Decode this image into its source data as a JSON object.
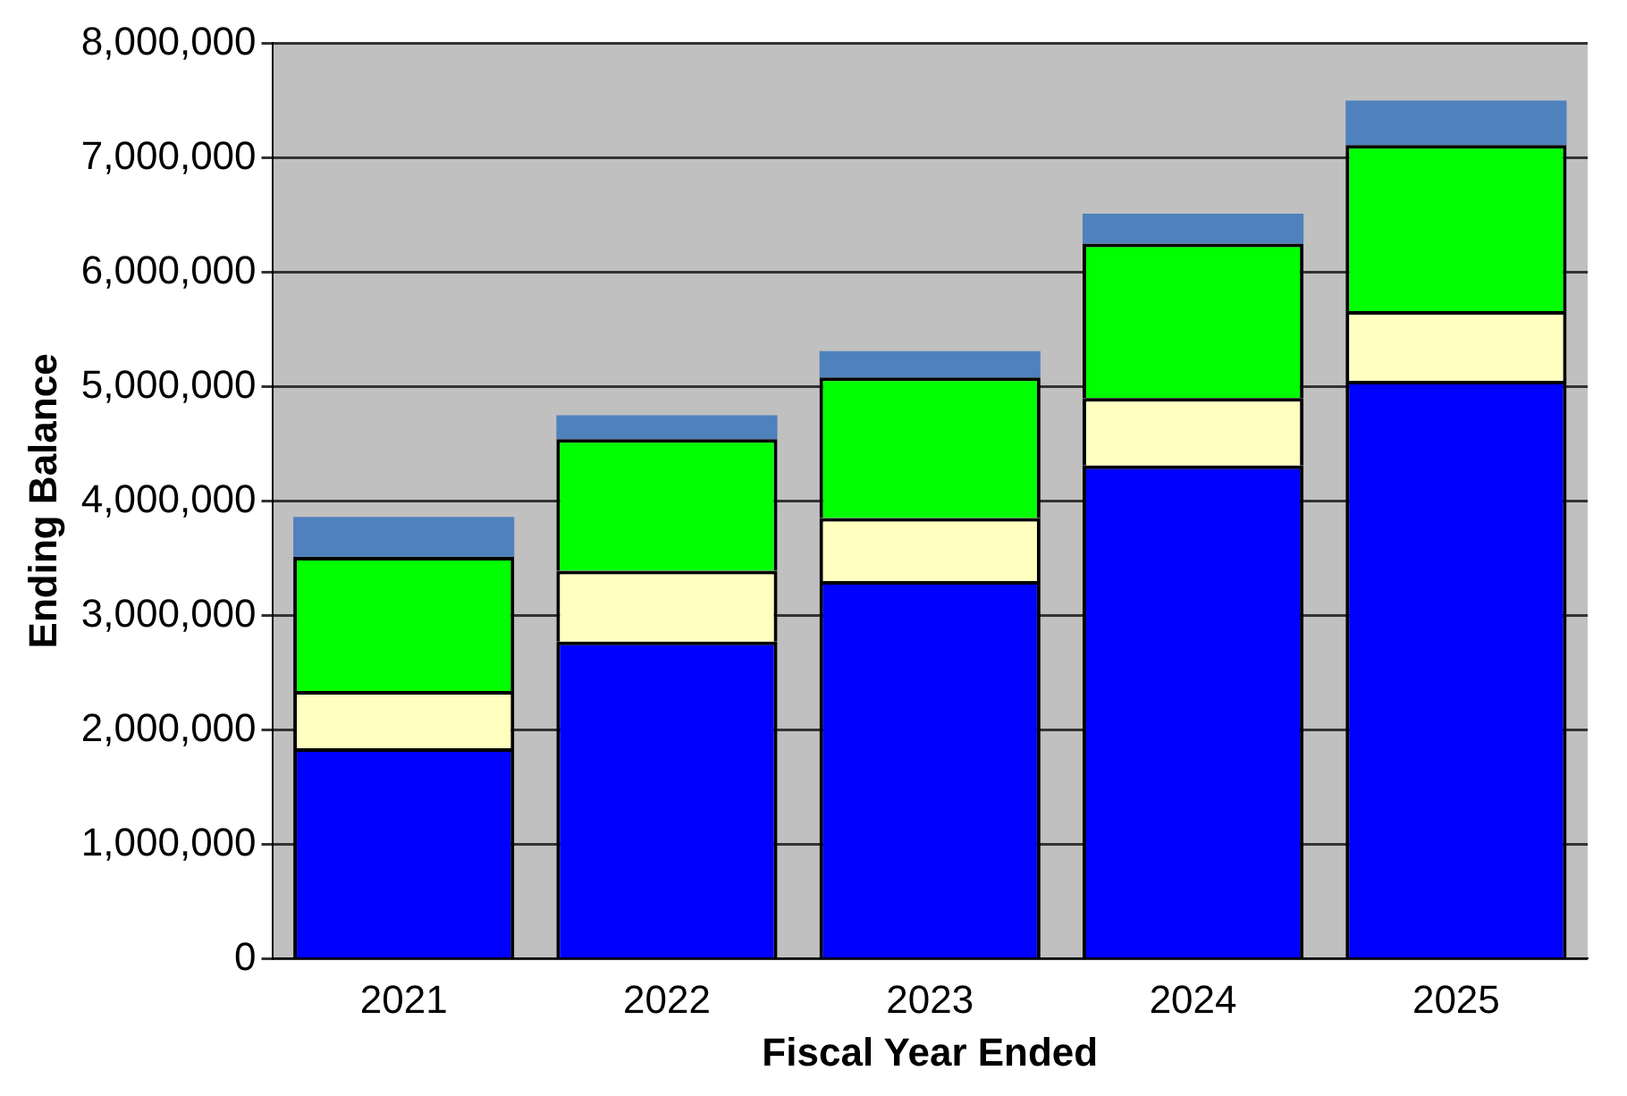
{
  "chart_data": {
    "type": "bar",
    "stacked": true,
    "xlabel": "Fiscal Year Ended",
    "ylabel": "Ending Balance",
    "categories": [
      "2021",
      "2022",
      "2023",
      "2024",
      "2025"
    ],
    "series": [
      {
        "color": "#0000ff",
        "values": [
          1840000,
          2770000,
          3300000,
          4310000,
          5050000
        ]
      },
      {
        "color": "#ffffc0",
        "values": [
          500000,
          620000,
          550000,
          590000,
          610000
        ]
      },
      {
        "color": "#00ff00",
        "values": [
          1170000,
          1150000,
          1230000,
          1350000,
          1450000
        ]
      },
      {
        "color": "#4f81bd",
        "values": [
          350000,
          210000,
          230000,
          260000,
          390000
        ]
      }
    ],
    "ylim": [
      0,
      8000000
    ],
    "yticks": [
      0,
      {
        "value": 1000000,
        "label": "1,000,000"
      },
      {
        "value": 2000000,
        "label": "2,000,000"
      },
      {
        "value": 3000000,
        "label": "3,000,000"
      },
      {
        "value": 4000000,
        "label": "4,000,000"
      },
      {
        "value": 5000000,
        "label": "5,000,000"
      },
      {
        "value": 6000000,
        "label": "6,000,000"
      },
      {
        "value": 7000000,
        "label": "7,000,000"
      },
      {
        "value": 8000000,
        "label": "8,000,000"
      }
    ],
    "grid": "y",
    "legend": false
  }
}
